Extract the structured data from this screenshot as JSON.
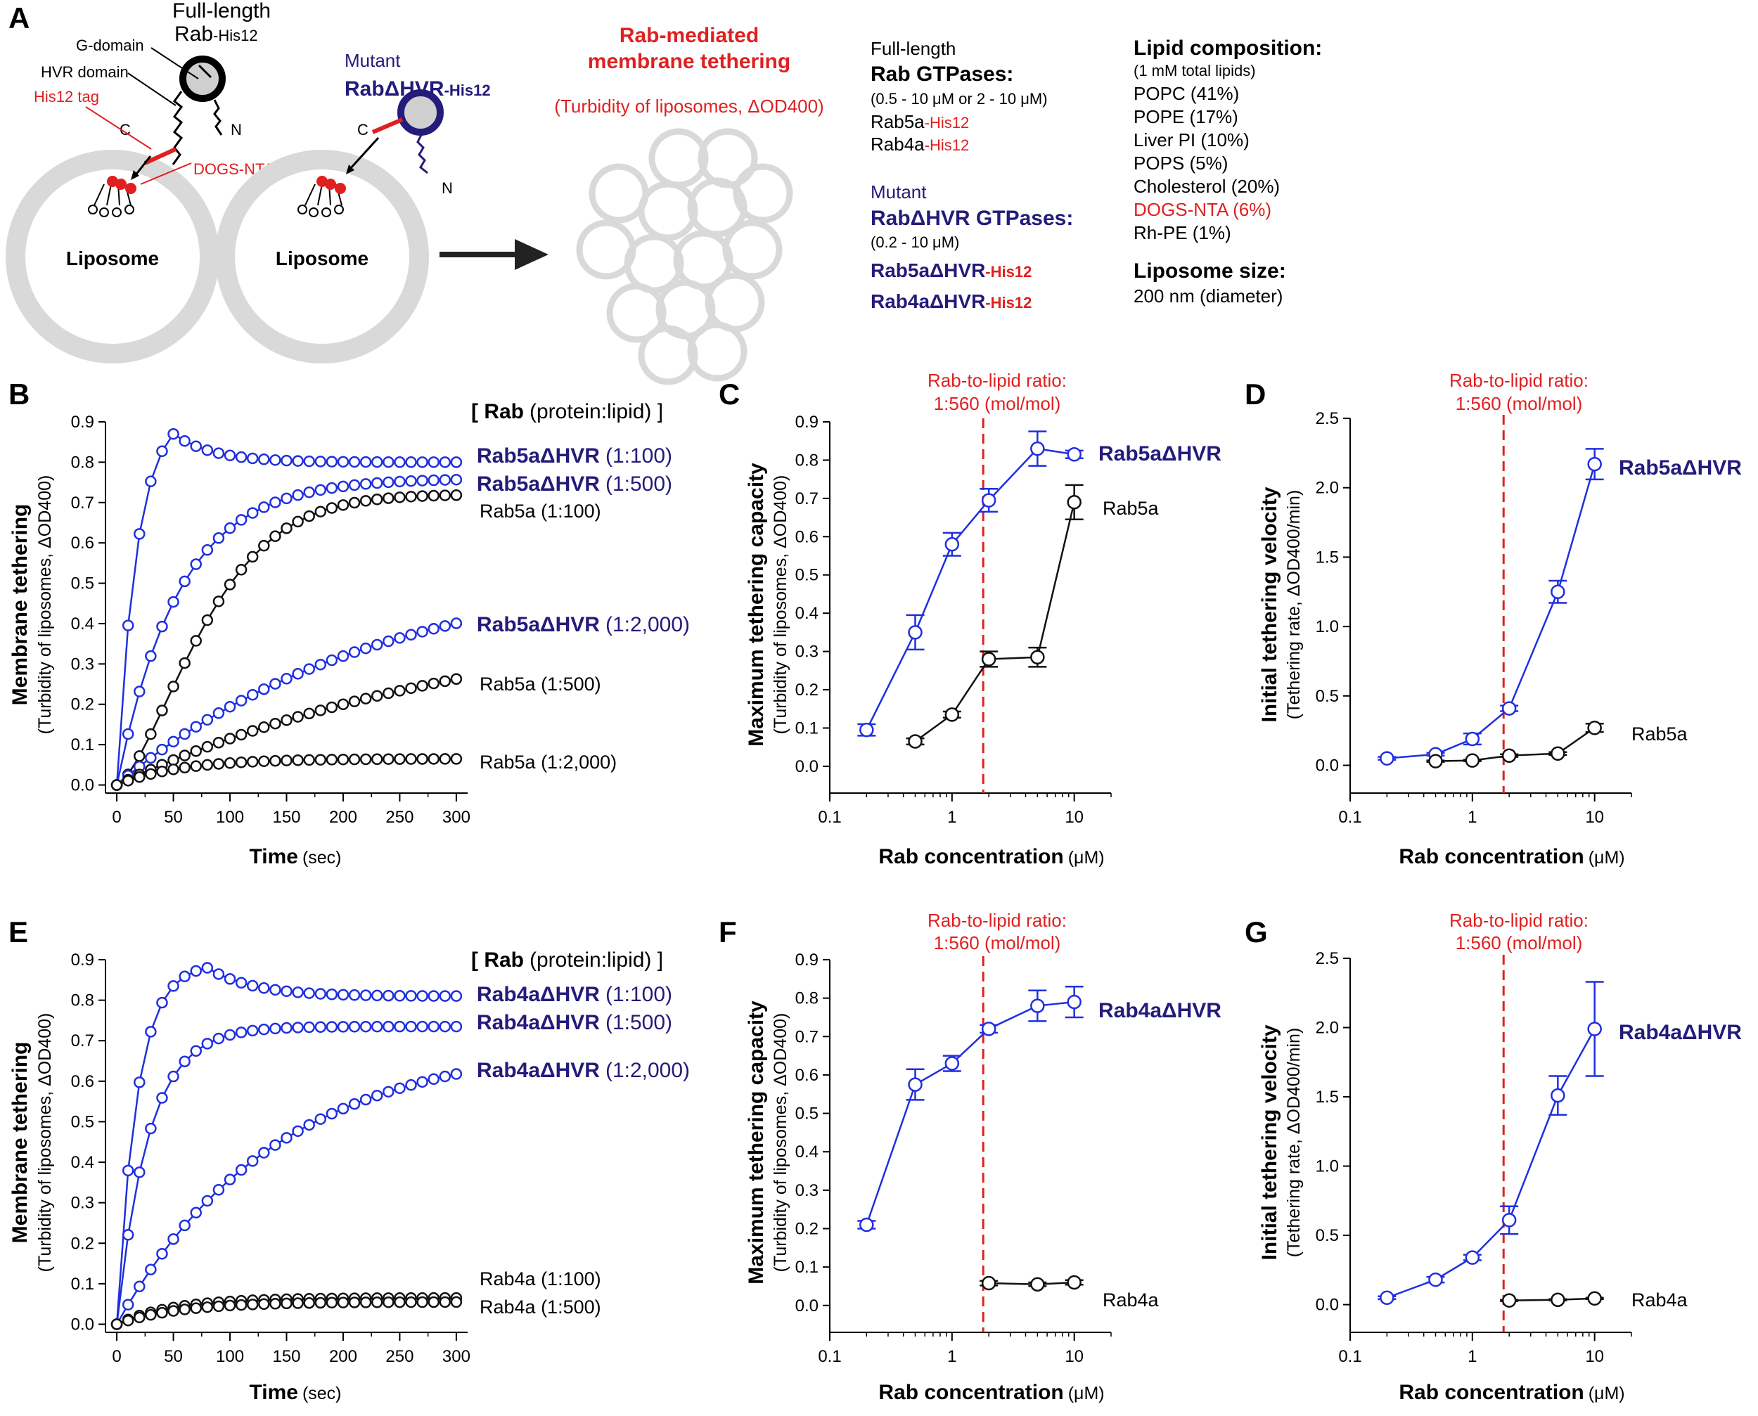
{
  "panels": {
    "A": "A",
    "B": "B",
    "C": "C",
    "D": "D",
    "E": "E",
    "F": "F",
    "G": "G"
  },
  "schematic": {
    "full_length": "Full-length",
    "rab_his12": "Rab",
    "his12_suffix": "-His12",
    "g_domain": "G-domain",
    "hvr_domain": "HVR domain",
    "his12_tag": "His12 tag",
    "dogs_nta": "DOGS-NTA",
    "c_label": "C",
    "n_label": "N",
    "liposome": "Liposome",
    "mutant": "Mutant",
    "rab_dhvr": "RabΔHVR",
    "title_line1": "Rab-mediated",
    "title_line2": "membrane tethering",
    "subtitle": "(Turbidity of liposomes, ΔOD400)",
    "fl_header": "Full-length",
    "fl_title": "Rab GTPases:",
    "fl_range": "(0.5 - 10 μM or 2 - 10 μM)",
    "fl_item1": "Rab5a",
    "fl_item2": "Rab4a",
    "mut_header": "Mutant",
    "mut_title": "RabΔHVR GTPases:",
    "mut_range": "(0.2 - 10 μM)",
    "mut_item1": "Rab5aΔHVR",
    "mut_item2": "Rab4aΔHVR",
    "lipid_title": "Lipid composition:",
    "lipid_total": "(1 mM  total lipids)",
    "lipids": [
      "POPC (41%)",
      "POPE (17%)",
      "Liver PI (10%)",
      "POPS (5%)",
      "Cholesterol (20%)",
      "DOGS-NTA (6%)",
      "Rh-PE (1%)"
    ],
    "size_title": "Liposome size:",
    "size_value": "200 nm (diameter)"
  },
  "common": {
    "ratio_line1": "Rab-to-lipid ratio:",
    "ratio_line2": "1:560 (mol/mol)",
    "kinetic_header_bold": "[ Rab",
    "kinetic_header_rest": "(protein:lipid) ]",
    "time_title": "Time",
    "time_unit": "(sec)",
    "conc_title": "Rab concentration",
    "conc_unit": "(μM)",
    "tether_title": "Membrane tethering",
    "tether_sub": "(Turbidity of liposomes, ΔOD400)",
    "maxcap_title": "Maximum tethering capacity",
    "maxcap_sub": "(Turbidity of liposomes, ΔOD400)",
    "vel_title": "Initial tethering velocity",
    "vel_sub": "(Tethering rate, ΔOD400/min)"
  },
  "colors": {
    "blue": "#1f2fe0",
    "black": "#111111",
    "red": "#e02020",
    "navy": "#241b7a",
    "gray": "#d9d9d9"
  },
  "chart_data": [
    {
      "id": "B",
      "type": "line",
      "xlabel": "Time (sec)",
      "ylabel": "Membrane tethering (Turbidity of liposomes, ΔOD400)",
      "xlim": [
        -10,
        310
      ],
      "ylim": [
        -0.02,
        0.9
      ],
      "x_ticks": [
        0,
        50,
        100,
        150,
        200,
        250,
        300
      ],
      "y_ticks": [
        0.0,
        0.1,
        0.2,
        0.3,
        0.4,
        0.5,
        0.6,
        0.7,
        0.8,
        0.9
      ],
      "series": [
        {
          "name": "Rab5aΔHVR",
          "ratio": "(1:100)",
          "color": "blue",
          "model": {
            "kind": "peak",
            "a": 0.8,
            "p": 0.87,
            "tp": 50,
            "tau": 18,
            "taud": 35
          }
        },
        {
          "name": "Rab5aΔHVR",
          "ratio": "(1:500)",
          "color": "blue",
          "model": {
            "kind": "exp",
            "a": 0.76,
            "tau": 55
          }
        },
        {
          "name": "Rab5a",
          "ratio": "(1:100)",
          "color": "black",
          "model": {
            "kind": "sig",
            "a": 0.72,
            "tau": 90,
            "n": 1.5
          }
        },
        {
          "name": "Rab5aΔHVR",
          "ratio": "(1:2,000)",
          "color": "blue",
          "model": {
            "kind": "exp",
            "a": 0.55,
            "tau": 230
          }
        },
        {
          "name": "Rab5a",
          "ratio": "(1:500)",
          "color": "black",
          "model": {
            "kind": "exp",
            "a": 0.44,
            "tau": 330
          }
        },
        {
          "name": "Rab5a",
          "ratio": "(1:2,000)",
          "color": "black",
          "model": {
            "kind": "exp",
            "a": 0.065,
            "tau": 55
          }
        }
      ]
    },
    {
      "id": "C",
      "type": "line",
      "xscale": "log",
      "xlabel": "Rab concentration (μM)",
      "ylabel": "Maximum tethering capacity (Turbidity of liposomes, ΔOD400)",
      "xlim": [
        0.1,
        20
      ],
      "ylim": [
        -0.07,
        0.9
      ],
      "x_ticks": [
        0.1,
        1,
        10
      ],
      "y_ticks": [
        0.0,
        0.1,
        0.2,
        0.3,
        0.4,
        0.5,
        0.6,
        0.7,
        0.8,
        0.9
      ],
      "vline": 1.8,
      "series": [
        {
          "name": "Rab5aΔHVR",
          "color": "blue",
          "x": [
            0.2,
            0.5,
            1,
            2,
            5,
            10
          ],
          "y": [
            0.095,
            0.35,
            0.58,
            0.695,
            0.83,
            0.815
          ],
          "err": [
            0.015,
            0.045,
            0.03,
            0.03,
            0.045,
            0.01
          ]
        },
        {
          "name": "Rab5a",
          "color": "black",
          "x": [
            0.5,
            1,
            2,
            5,
            10
          ],
          "y": [
            0.065,
            0.135,
            0.28,
            0.285,
            0.69
          ],
          "err": [
            0.008,
            0.008,
            0.02,
            0.025,
            0.045
          ]
        }
      ]
    },
    {
      "id": "D",
      "type": "line",
      "xscale": "log",
      "xlabel": "Rab concentration (μM)",
      "ylabel": "Initial tethering velocity (Tethering rate, ΔOD400/min)",
      "xlim": [
        0.1,
        20
      ],
      "ylim": [
        -0.2,
        2.5
      ],
      "x_ticks": [
        0.1,
        1,
        10
      ],
      "y_ticks": [
        0.0,
        0.5,
        1.0,
        1.5,
        2.0,
        2.5
      ],
      "vline": 1.8,
      "series": [
        {
          "name": "Rab5aΔHVR",
          "color": "blue",
          "x": [
            0.2,
            0.5,
            1,
            2,
            5,
            10
          ],
          "y": [
            0.05,
            0.08,
            0.19,
            0.41,
            1.25,
            2.17
          ],
          "err": [
            0.01,
            0.01,
            0.04,
            0.02,
            0.08,
            0.11
          ]
        },
        {
          "name": "Rab5a",
          "color": "black",
          "x": [
            0.5,
            1,
            2,
            5,
            10
          ],
          "y": [
            0.03,
            0.035,
            0.07,
            0.085,
            0.27
          ],
          "err": [
            0.005,
            0.005,
            0.01,
            0.01,
            0.03
          ]
        }
      ]
    },
    {
      "id": "E",
      "type": "line",
      "xlabel": "Time (sec)",
      "ylabel": "Membrane tethering (Turbidity of liposomes, ΔOD400)",
      "xlim": [
        -10,
        310
      ],
      "ylim": [
        -0.02,
        0.9
      ],
      "x_ticks": [
        0,
        50,
        100,
        150,
        200,
        250,
        300
      ],
      "y_ticks": [
        0.0,
        0.1,
        0.2,
        0.3,
        0.4,
        0.5,
        0.6,
        0.7,
        0.8,
        0.9
      ],
      "series": [
        {
          "name": "Rab4aΔHVR",
          "ratio": "(1:100)",
          "color": "blue",
          "model": {
            "kind": "peak",
            "a": 0.81,
            "p": 0.88,
            "tp": 80,
            "tau": 18,
            "taud": 40
          }
        },
        {
          "name": "Rab4aΔHVR",
          "ratio": "(1:500)",
          "color": "blue",
          "model": {
            "kind": "exp",
            "a": 0.735,
            "tau": 28
          }
        },
        {
          "name": "Rab4aΔHVR",
          "ratio": "(1:2,000)",
          "color": "blue",
          "model": {
            "kind": "exp",
            "a": 0.7,
            "tau": 140
          }
        },
        {
          "name": "Rab4a",
          "ratio": "(1:100)",
          "color": "black",
          "model": {
            "kind": "exp",
            "a": 0.065,
            "tau": 50
          }
        },
        {
          "name": "Rab4a",
          "ratio": "(1:500)",
          "color": "black",
          "model": {
            "kind": "exp",
            "a": 0.055,
            "tau": 55
          }
        }
      ]
    },
    {
      "id": "F",
      "type": "line",
      "xscale": "log",
      "xlabel": "Rab concentration (μM)",
      "ylabel": "Maximum tethering capacity (Turbidity of liposomes, ΔOD400)",
      "xlim": [
        0.1,
        20
      ],
      "ylim": [
        -0.07,
        0.9
      ],
      "x_ticks": [
        0.1,
        1,
        10
      ],
      "y_ticks": [
        0.0,
        0.1,
        0.2,
        0.3,
        0.4,
        0.5,
        0.6,
        0.7,
        0.8,
        0.9
      ],
      "vline": 1.8,
      "series": [
        {
          "name": "Rab4aΔHVR",
          "color": "blue",
          "x": [
            0.2,
            0.5,
            1,
            2,
            5,
            10
          ],
          "y": [
            0.21,
            0.575,
            0.63,
            0.72,
            0.78,
            0.79
          ],
          "err": [
            0.01,
            0.04,
            0.02,
            0.01,
            0.04,
            0.04
          ]
        },
        {
          "name": "Rab4a",
          "color": "black",
          "x": [
            2,
            5,
            10
          ],
          "y": [
            0.058,
            0.055,
            0.06
          ],
          "err": [
            0.006,
            0.005,
            0.006
          ]
        }
      ]
    },
    {
      "id": "G",
      "type": "line",
      "xscale": "log",
      "xlabel": "Rab concentration (μM)",
      "ylabel": "Initial tethering velocity (Tethering rate, ΔOD400/min)",
      "xlim": [
        0.1,
        20
      ],
      "ylim": [
        -0.2,
        2.5
      ],
      "x_ticks": [
        0.1,
        1,
        10
      ],
      "y_ticks": [
        0.0,
        0.5,
        1.0,
        1.5,
        2.0,
        2.5
      ],
      "vline": 1.8,
      "series": [
        {
          "name": "Rab4aΔHVR",
          "color": "blue",
          "x": [
            0.2,
            0.5,
            1,
            2,
            5,
            10
          ],
          "y": [
            0.05,
            0.18,
            0.34,
            0.61,
            1.51,
            1.99
          ],
          "err": [
            0.01,
            0.02,
            0.02,
            0.1,
            0.14,
            0.34
          ]
        },
        {
          "name": "Rab4a",
          "color": "black",
          "x": [
            2,
            5,
            10
          ],
          "y": [
            0.03,
            0.035,
            0.045
          ],
          "err": [
            0.005,
            0.005,
            0.005
          ]
        }
      ]
    }
  ]
}
